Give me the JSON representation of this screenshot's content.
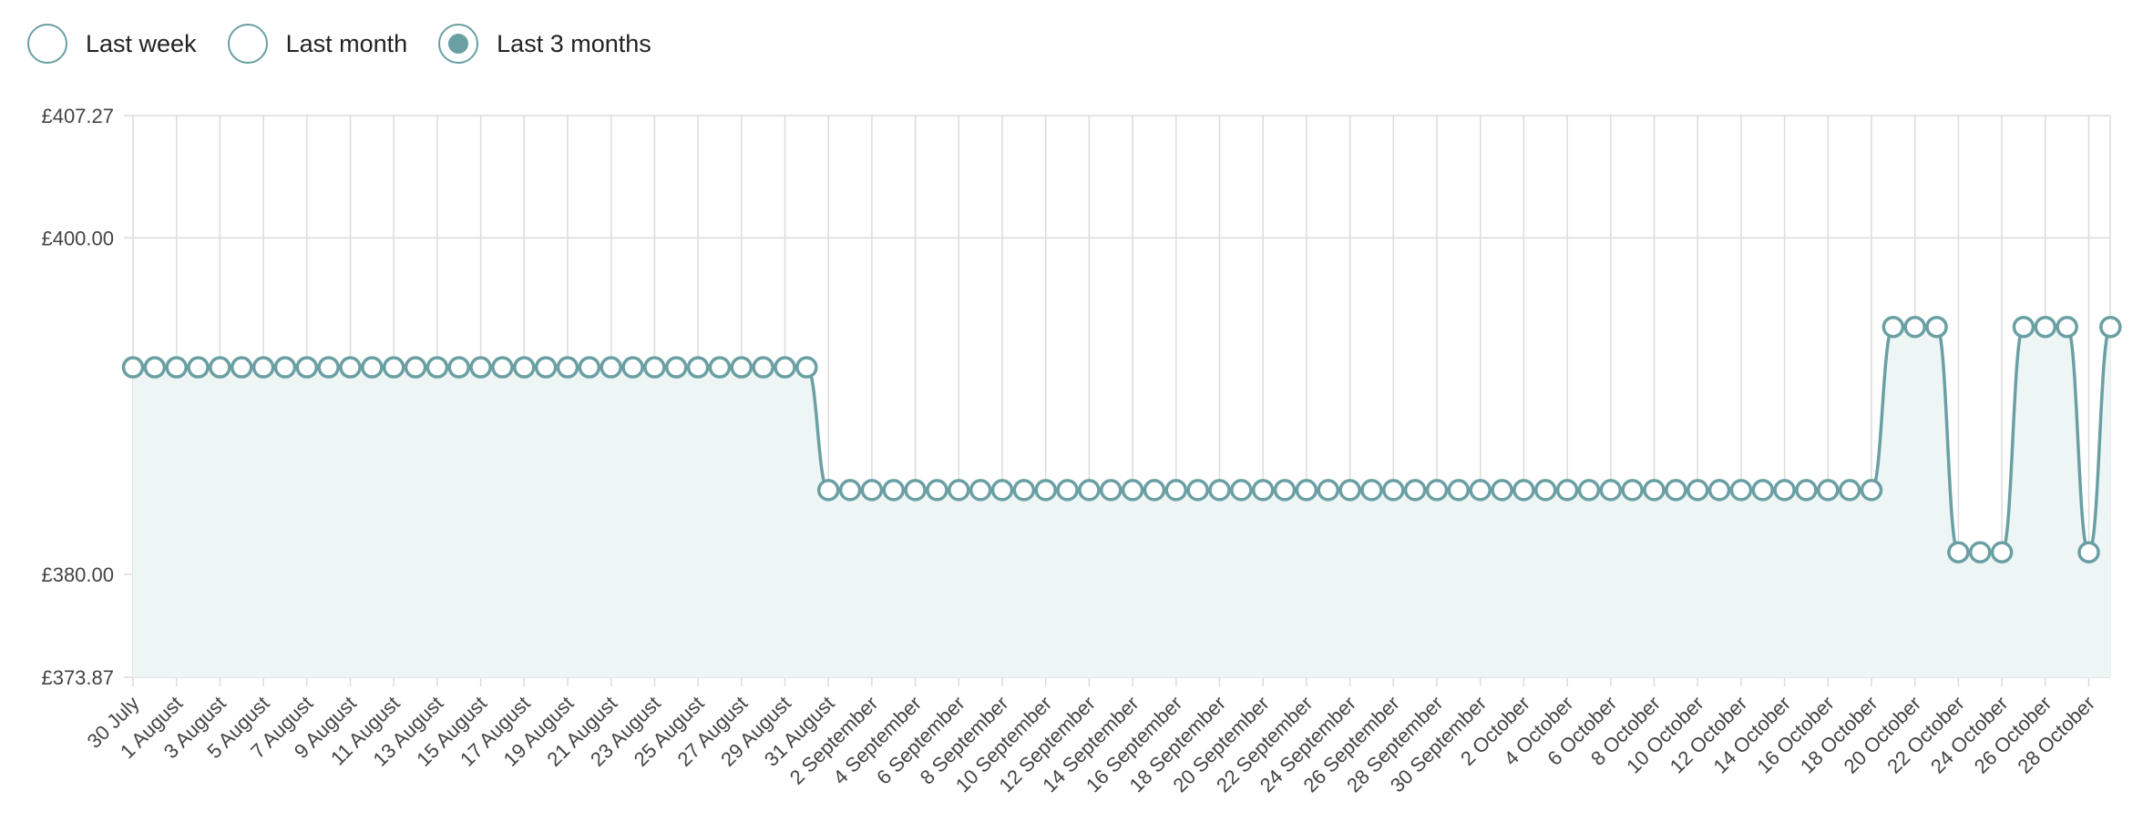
{
  "range_selector": {
    "options": [
      {
        "label": "Last week",
        "selected": false
      },
      {
        "label": "Last month",
        "selected": false
      },
      {
        "label": "Last 3 months",
        "selected": true
      }
    ],
    "accent_color": "#6a9fa3"
  },
  "chart_data": {
    "type": "line",
    "title": "",
    "xlabel": "",
    "ylabel": "",
    "currency": "£",
    "ylim": [
      373.87,
      407.27
    ],
    "y_ticks": [
      "£407.27",
      "£400.00",
      "£380.00",
      "£373.87"
    ],
    "y_tick_values": [
      407.27,
      400.0,
      380.0,
      373.87
    ],
    "grid": true,
    "x_tick_labels": [
      "30 July",
      "1 August",
      "3 August",
      "5 August",
      "7 August",
      "9 August",
      "11 August",
      "13 August",
      "15 August",
      "17 August",
      "19 August",
      "21 August",
      "23 August",
      "25 August",
      "27 August",
      "29 August",
      "31 August",
      "2 September",
      "4 September",
      "6 September",
      "8 September",
      "10 September",
      "12 September",
      "14 September",
      "16 September",
      "18 September",
      "20 September",
      "22 September",
      "24 September",
      "26 September",
      "28 September",
      "30 September",
      "2 October",
      "4 October",
      "6 October",
      "8 October",
      "10 October",
      "12 October",
      "14 October",
      "16 October",
      "18 October",
      "20 October",
      "22 October",
      "24 October",
      "26 October",
      "28 October"
    ],
    "series": [
      {
        "line_color": "#6a9fa3",
        "fill_color": "#eef5f5",
        "segments": [
          {
            "from": "30 July",
            "days": 32,
            "value": 392.3
          },
          {
            "from": "31 August",
            "days": 49,
            "value": 385.0
          },
          {
            "from": "18 October",
            "days": 3,
            "value": 394.7
          },
          {
            "from": "21 October",
            "days": 3,
            "value": 381.3
          },
          {
            "from": "24 October",
            "days": 3,
            "value": 394.7
          },
          {
            "from": "27 October",
            "days": 1,
            "value": 381.3
          },
          {
            "from": "28 October",
            "days": 1,
            "value": 394.7
          }
        ]
      }
    ]
  }
}
